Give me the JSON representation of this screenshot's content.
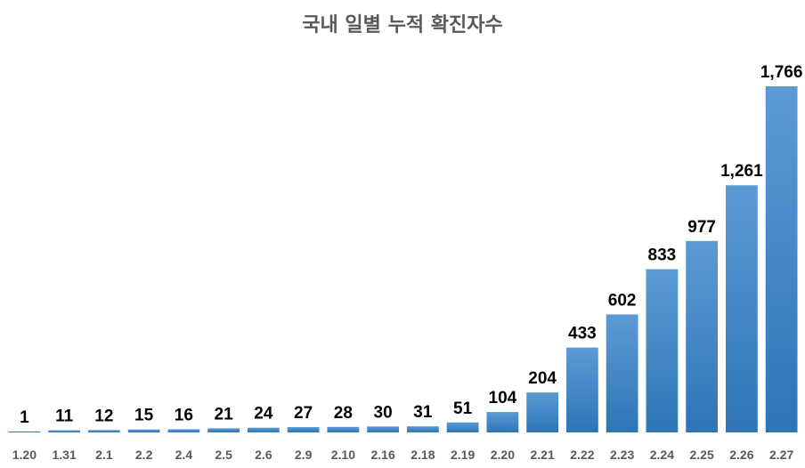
{
  "chart_data": {
    "type": "bar",
    "title": "국내 일별 누적 확진자수",
    "xlabel": "",
    "ylabel": "",
    "categories": [
      "1.20",
      "1.31",
      "2.1",
      "2.2",
      "2.4",
      "2.5",
      "2.6",
      "2.9",
      "2.10",
      "2.16",
      "2.18",
      "2.19",
      "2.20",
      "2.21",
      "2.22",
      "2.23",
      "2.24",
      "2.25",
      "2.26",
      "2.27"
    ],
    "values": [
      1,
      11,
      12,
      15,
      16,
      21,
      24,
      27,
      28,
      30,
      31,
      51,
      104,
      204,
      433,
      602,
      833,
      977,
      1261,
      1766
    ],
    "value_labels": [
      "1",
      "11",
      "12",
      "15",
      "16",
      "21",
      "24",
      "27",
      "28",
      "30",
      "31",
      "51",
      "104",
      "204",
      "433",
      "602",
      "833",
      "977",
      "1,261",
      "1,766"
    ],
    "ylim": [
      0,
      1800
    ],
    "grid": false,
    "legend": "none",
    "colors": {
      "bar_top": "#5B9BD5",
      "bar_bottom": "#2E75B6",
      "first_bar": "#2E8B57",
      "title": "#595959",
      "tick_label": "#595959",
      "value_label": "#000000"
    }
  }
}
